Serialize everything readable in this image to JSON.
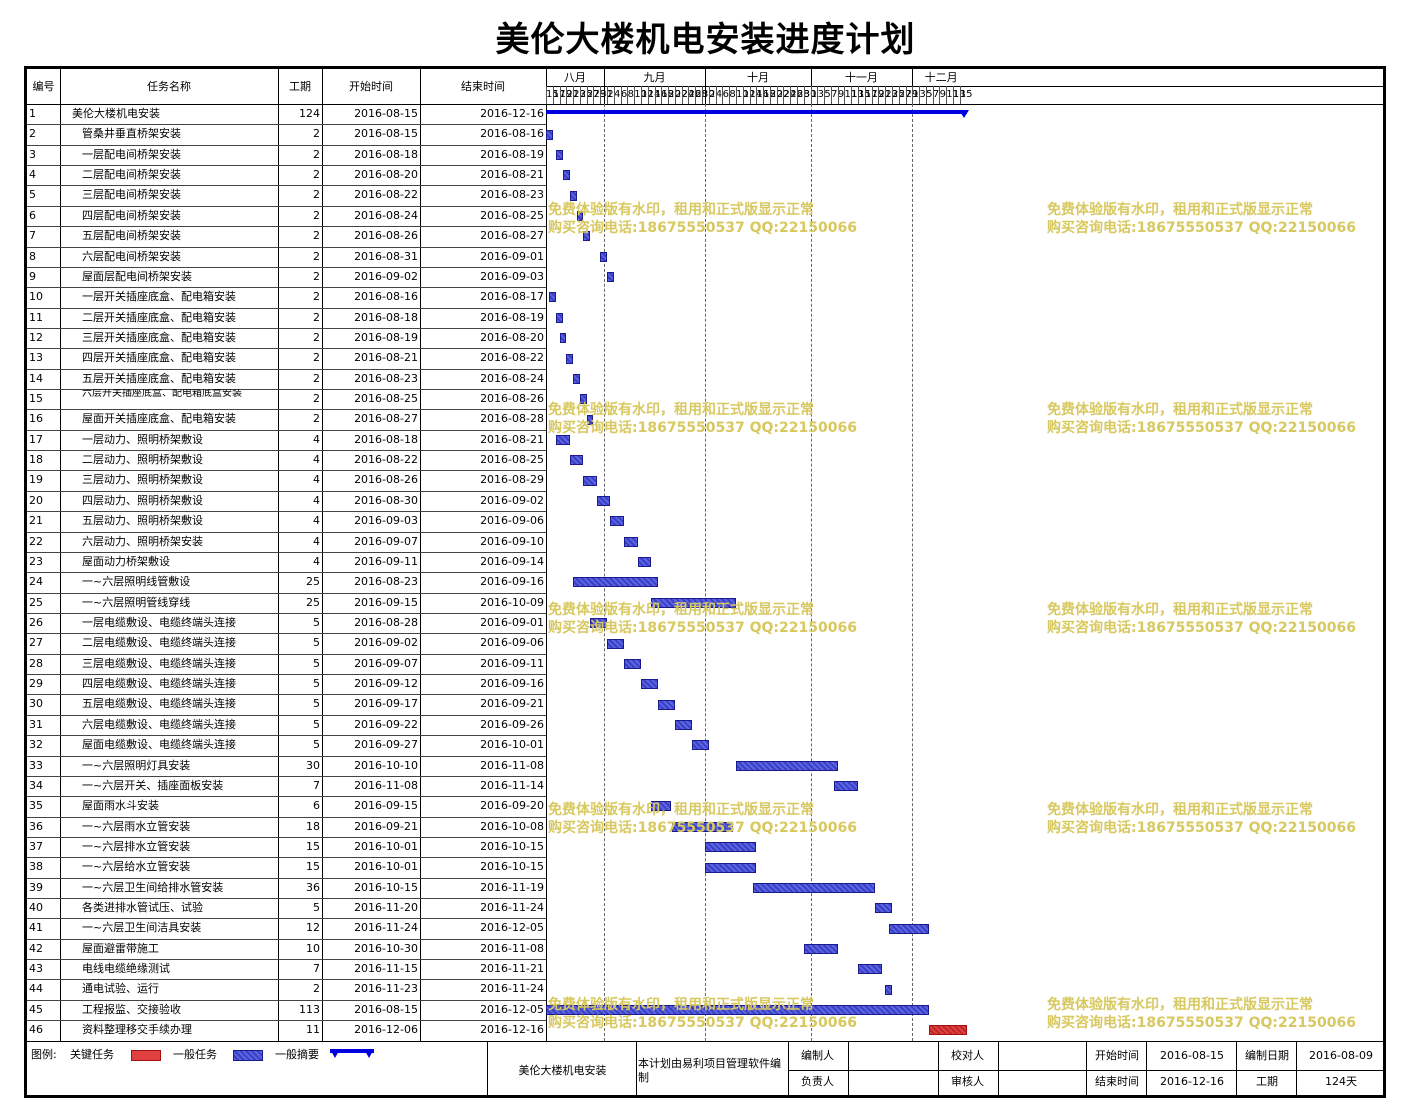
{
  "title": "美伦大楼机电安装进度计划",
  "headers": {
    "id": "编号",
    "name": "任务名称",
    "dur": "工期",
    "start": "开始时间",
    "end": "结束时间"
  },
  "months": [
    "八月",
    "九月",
    "十月",
    "十一月",
    "十二月"
  ],
  "timeline_days": [
    "15",
    "17",
    "19",
    "21",
    "23",
    "25",
    "27",
    "29",
    "31",
    "2",
    "4",
    "6",
    "8",
    "10",
    "12",
    "14",
    "16",
    "18",
    "20",
    "22",
    "24",
    "26",
    "28",
    "30",
    "2",
    "4",
    "6",
    "8",
    "10",
    "12",
    "14",
    "16",
    "18",
    "20",
    "22",
    "24",
    "26",
    "28",
    "30",
    "1",
    "3",
    "5",
    "7",
    "9",
    "11",
    "13",
    "15",
    "17",
    "19",
    "21",
    "23",
    "25",
    "27",
    "29",
    "1",
    "3",
    "5",
    "7",
    "9",
    "11",
    "13",
    "15"
  ],
  "tasks": [
    {
      "id": "1",
      "name": "美伦大楼机电安装",
      "dur": "124",
      "start": "2016-08-15",
      "end": "2016-12-16",
      "type": "summary"
    },
    {
      "id": "2",
      "name": "管桑井垂直桥架安装",
      "dur": "2",
      "start": "2016-08-15",
      "end": "2016-08-16",
      "type": "normal"
    },
    {
      "id": "3",
      "name": "一层配电间桥架安装",
      "dur": "2",
      "start": "2016-08-18",
      "end": "2016-08-19",
      "type": "normal"
    },
    {
      "id": "4",
      "name": "二层配电间桥架安装",
      "dur": "2",
      "start": "2016-08-20",
      "end": "2016-08-21",
      "type": "normal"
    },
    {
      "id": "5",
      "name": "三层配电间桥架安装",
      "dur": "2",
      "start": "2016-08-22",
      "end": "2016-08-23",
      "type": "normal"
    },
    {
      "id": "6",
      "name": "四层配电间桥架安装",
      "dur": "2",
      "start": "2016-08-24",
      "end": "2016-08-25",
      "type": "normal"
    },
    {
      "id": "7",
      "name": "五层配电间桥架安装",
      "dur": "2",
      "start": "2016-08-26",
      "end": "2016-08-27",
      "type": "normal"
    },
    {
      "id": "8",
      "name": "六层配电间桥架安装",
      "dur": "2",
      "start": "2016-08-31",
      "end": "2016-09-01",
      "type": "normal"
    },
    {
      "id": "9",
      "name": "屋面层配电间桥架安装",
      "dur": "2",
      "start": "2016-09-02",
      "end": "2016-09-03",
      "type": "normal"
    },
    {
      "id": "10",
      "name": "一层开关插座底盒、配电箱安装",
      "dur": "2",
      "start": "2016-08-16",
      "end": "2016-08-17",
      "type": "normal"
    },
    {
      "id": "11",
      "name": "二层开关插座底盒、配电箱安装",
      "dur": "2",
      "start": "2016-08-18",
      "end": "2016-08-19",
      "type": "normal"
    },
    {
      "id": "12",
      "name": "三层开关插座底盒、配电箱安装",
      "dur": "2",
      "start": "2016-08-19",
      "end": "2016-08-20",
      "type": "normal"
    },
    {
      "id": "13",
      "name": "四层开关插座底盒、配电箱安装",
      "dur": "2",
      "start": "2016-08-21",
      "end": "2016-08-22",
      "type": "normal"
    },
    {
      "id": "14",
      "name": "五层开关插座底盒、配电箱安装",
      "dur": "2",
      "start": "2016-08-23",
      "end": "2016-08-24",
      "type": "normal"
    },
    {
      "id": "15",
      "name": "六层开关插座底盒、配电箱底盒安装",
      "dur": "2",
      "start": "2016-08-25",
      "end": "2016-08-26",
      "type": "normal"
    },
    {
      "id": "16",
      "name": "屋面开关插座底盒、配电箱安装",
      "dur": "2",
      "start": "2016-08-27",
      "end": "2016-08-28",
      "type": "normal"
    },
    {
      "id": "17",
      "name": "一层动力、照明桥架敷设",
      "dur": "4",
      "start": "2016-08-18",
      "end": "2016-08-21",
      "type": "normal"
    },
    {
      "id": "18",
      "name": "二层动力、照明桥架敷设",
      "dur": "4",
      "start": "2016-08-22",
      "end": "2016-08-25",
      "type": "normal"
    },
    {
      "id": "19",
      "name": "三层动力、照明桥架敷设",
      "dur": "4",
      "start": "2016-08-26",
      "end": "2016-08-29",
      "type": "normal"
    },
    {
      "id": "20",
      "name": "四层动力、照明桥架敷设",
      "dur": "4",
      "start": "2016-08-30",
      "end": "2016-09-02",
      "type": "normal"
    },
    {
      "id": "21",
      "name": "五层动力、照明桥架敷设",
      "dur": "4",
      "start": "2016-09-03",
      "end": "2016-09-06",
      "type": "normal"
    },
    {
      "id": "22",
      "name": "六层动力、照明桥架安装",
      "dur": "4",
      "start": "2016-09-07",
      "end": "2016-09-10",
      "type": "normal"
    },
    {
      "id": "23",
      "name": "屋面动力桥架敷设",
      "dur": "4",
      "start": "2016-09-11",
      "end": "2016-09-14",
      "type": "normal"
    },
    {
      "id": "24",
      "name": "一~六层照明线管敷设",
      "dur": "25",
      "start": "2016-08-23",
      "end": "2016-09-16",
      "type": "normal"
    },
    {
      "id": "25",
      "name": "一~六层照明管线穿线",
      "dur": "25",
      "start": "2016-09-15",
      "end": "2016-10-09",
      "type": "normal"
    },
    {
      "id": "26",
      "name": "一层电缆敷设、电缆终端头连接",
      "dur": "5",
      "start": "2016-08-28",
      "end": "2016-09-01",
      "type": "normal"
    },
    {
      "id": "27",
      "name": "二层电缆敷设、电缆终端头连接",
      "dur": "5",
      "start": "2016-09-02",
      "end": "2016-09-06",
      "type": "normal"
    },
    {
      "id": "28",
      "name": "三层电缆敷设、电缆终端头连接",
      "dur": "5",
      "start": "2016-09-07",
      "end": "2016-09-11",
      "type": "normal"
    },
    {
      "id": "29",
      "name": "四层电缆敷设、电缆终端头连接",
      "dur": "5",
      "start": "2016-09-12",
      "end": "2016-09-16",
      "type": "normal"
    },
    {
      "id": "30",
      "name": "五层电缆敷设、电缆终端头连接",
      "dur": "5",
      "start": "2016-09-17",
      "end": "2016-09-21",
      "type": "normal"
    },
    {
      "id": "31",
      "name": "六层电缆敷设、电缆终端头连接",
      "dur": "5",
      "start": "2016-09-22",
      "end": "2016-09-26",
      "type": "normal"
    },
    {
      "id": "32",
      "name": "屋面电缆敷设、电缆终端头连接",
      "dur": "5",
      "start": "2016-09-27",
      "end": "2016-10-01",
      "type": "normal"
    },
    {
      "id": "33",
      "name": "一~六层照明灯具安装",
      "dur": "30",
      "start": "2016-10-10",
      "end": "2016-11-08",
      "type": "normal"
    },
    {
      "id": "34",
      "name": "一~六层开关、插座面板安装",
      "dur": "7",
      "start": "2016-11-08",
      "end": "2016-11-14",
      "type": "normal"
    },
    {
      "id": "35",
      "name": "屋面雨水斗安装",
      "dur": "6",
      "start": "2016-09-15",
      "end": "2016-09-20",
      "type": "normal"
    },
    {
      "id": "36",
      "name": "一~六层雨水立管安装",
      "dur": "18",
      "start": "2016-09-21",
      "end": "2016-10-08",
      "type": "normal"
    },
    {
      "id": "37",
      "name": "一~六层排水立管安装",
      "dur": "15",
      "start": "2016-10-01",
      "end": "2016-10-15",
      "type": "normal"
    },
    {
      "id": "38",
      "name": "一~六层给水立管安装",
      "dur": "15",
      "start": "2016-10-01",
      "end": "2016-10-15",
      "type": "normal"
    },
    {
      "id": "39",
      "name": "一~六层卫生间给排水管安装",
      "dur": "36",
      "start": "2016-10-15",
      "end": "2016-11-19",
      "type": "normal"
    },
    {
      "id": "40",
      "name": "各类进排水管试压、试验",
      "dur": "5",
      "start": "2016-11-20",
      "end": "2016-11-24",
      "type": "normal"
    },
    {
      "id": "41",
      "name": "一~六层卫生间洁具安装",
      "dur": "12",
      "start": "2016-11-24",
      "end": "2016-12-05",
      "type": "normal"
    },
    {
      "id": "42",
      "name": "屋面避雷带施工",
      "dur": "10",
      "start": "2016-10-30",
      "end": "2016-11-08",
      "type": "normal"
    },
    {
      "id": "43",
      "name": "电线电缆绝缘测试",
      "dur": "7",
      "start": "2016-11-15",
      "end": "2016-11-21",
      "type": "normal"
    },
    {
      "id": "44",
      "name": "通电试验、运行",
      "dur": "2",
      "start": "2016-11-23",
      "end": "2016-11-24",
      "type": "normal"
    },
    {
      "id": "45",
      "name": "工程报监、交接验收",
      "dur": "113",
      "start": "2016-08-15",
      "end": "2016-12-05",
      "type": "normal"
    },
    {
      "id": "46",
      "name": "资料整理移交手续办理",
      "dur": "11",
      "start": "2016-12-06",
      "end": "2016-12-16",
      "type": "critical"
    }
  ],
  "watermark": {
    "line1": "免费体验版有水印，租用和正式版显示正常",
    "line2": "购买咨询电话:18675550537 QQ:22150066"
  },
  "footer": {
    "legend_label": "图例:",
    "legend_critical": "关键任务",
    "legend_normal": "一般任务",
    "legend_summary": "一般摘要",
    "project_name": "美伦大楼机电安装",
    "software_note": "本计划由易利项目管理软件编制",
    "compiler_label": "编制人",
    "checker_label": "校对人",
    "owner_label": "负责人",
    "reviewer_label": "审核人",
    "start_label": "开始时间",
    "start_value": "2016-08-15",
    "end_label": "结束时间",
    "end_value": "2016-12-16",
    "made_date_label": "编制日期",
    "made_date_value": "2016-08-09",
    "duration_label": "工期",
    "duration_value": "124天"
  },
  "colors": {
    "normal_bar": "#4a52d6",
    "critical_bar": "#d83030",
    "summary_bar": "#0000e0",
    "watermark": "#d8c860"
  }
}
